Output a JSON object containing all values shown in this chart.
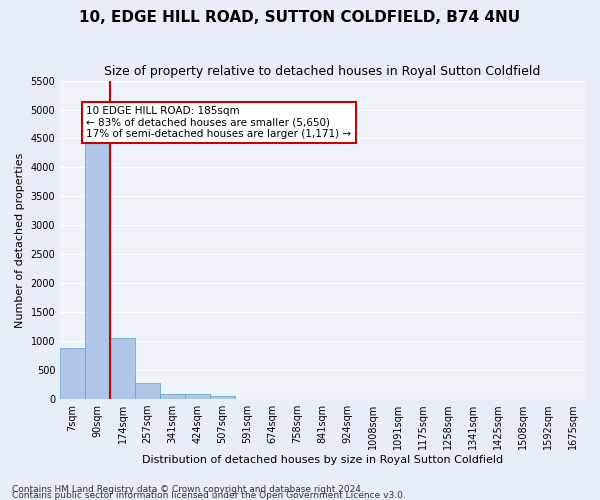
{
  "title": "10, EDGE HILL ROAD, SUTTON COLDFIELD, B74 4NU",
  "subtitle": "Size of property relative to detached houses in Royal Sutton Coldfield",
  "xlabel": "Distribution of detached houses by size in Royal Sutton Coldfield",
  "ylabel": "Number of detached properties",
  "footnote1": "Contains HM Land Registry data © Crown copyright and database right 2024.",
  "footnote2": "Contains public sector information licensed under the Open Government Licence v3.0.",
  "bin_labels": [
    "7sqm",
    "90sqm",
    "174sqm",
    "257sqm",
    "341sqm",
    "424sqm",
    "507sqm",
    "591sqm",
    "674sqm",
    "758sqm",
    "841sqm",
    "924sqm",
    "1008sqm",
    "1091sqm",
    "1175sqm",
    "1258sqm",
    "1341sqm",
    "1425sqm",
    "1508sqm",
    "1592sqm",
    "1675sqm"
  ],
  "bar_values": [
    880,
    4540,
    1060,
    280,
    95,
    80,
    55,
    0,
    0,
    0,
    0,
    0,
    0,
    0,
    0,
    0,
    0,
    0,
    0,
    0,
    0
  ],
  "bar_color": "#aec6e8",
  "bar_edge_color": "#5a9fd4",
  "red_line_bin": 2,
  "annotation_text": "10 EDGE HILL ROAD: 185sqm\n← 83% of detached houses are smaller (5,650)\n17% of semi-detached houses are larger (1,171) →",
  "annotation_box_color": "#ffffff",
  "annotation_box_edge_color": "#cc0000",
  "ylim": [
    0,
    5500
  ],
  "yticks": [
    0,
    500,
    1000,
    1500,
    2000,
    2500,
    3000,
    3500,
    4000,
    4500,
    5000,
    5500
  ],
  "bg_color": "#e8eef7",
  "plot_bg_color": "#eef2f9",
  "grid_color": "#ffffff",
  "title_fontsize": 11,
  "subtitle_fontsize": 9,
  "axis_label_fontsize": 8,
  "tick_fontsize": 7,
  "annotation_fontsize": 7.5,
  "footnote_fontsize": 6.5
}
